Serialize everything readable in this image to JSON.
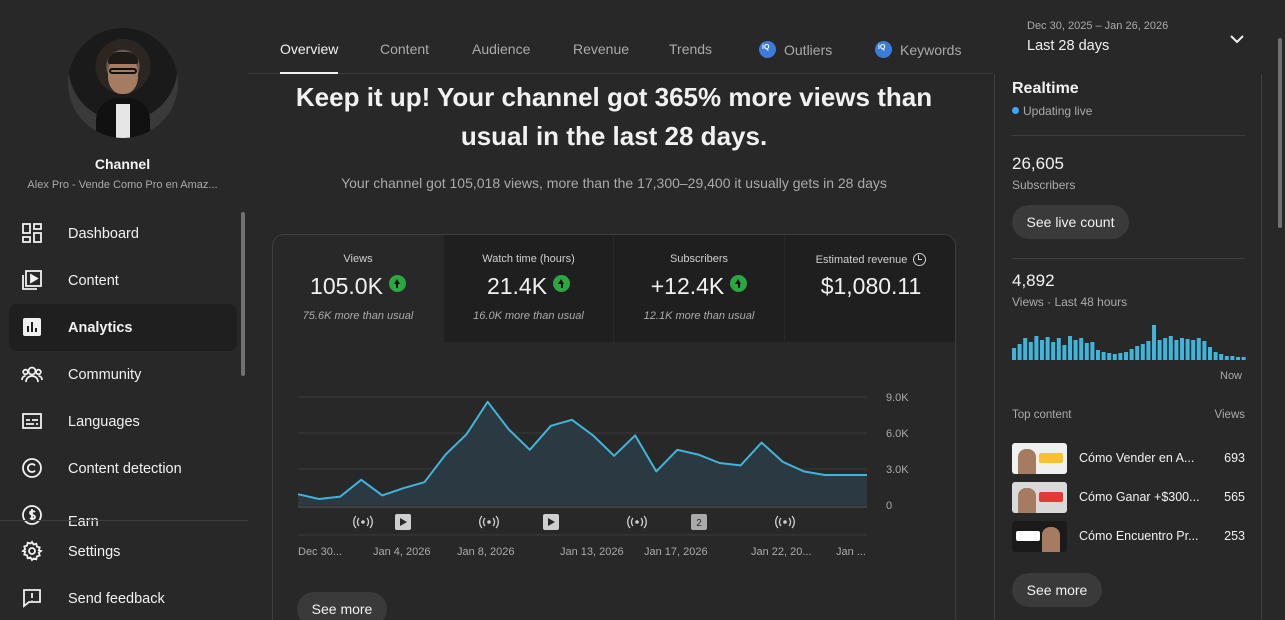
{
  "sidebar": {
    "channel_title": "Channel",
    "channel_name": "Alex Pro - Vende Como Pro en Amaz...",
    "items": [
      {
        "label": "Dashboard",
        "icon": "dashboard-icon"
      },
      {
        "label": "Content",
        "icon": "content-icon"
      },
      {
        "label": "Analytics",
        "icon": "analytics-icon",
        "active": true
      },
      {
        "label": "Community",
        "icon": "community-icon"
      },
      {
        "label": "Languages",
        "icon": "languages-icon"
      },
      {
        "label": "Content detection",
        "icon": "copyright-icon"
      },
      {
        "label": "Earn",
        "icon": "earn-icon"
      }
    ],
    "bottom_items": [
      {
        "label": "Settings",
        "icon": "gear-icon"
      },
      {
        "label": "Send feedback",
        "icon": "feedback-icon"
      }
    ]
  },
  "tabs": [
    {
      "label": "Overview",
      "active": true
    },
    {
      "label": "Content"
    },
    {
      "label": "Audience"
    },
    {
      "label": "Revenue"
    },
    {
      "label": "Trends"
    },
    {
      "label": "Outliers",
      "badge": true
    },
    {
      "label": "Keywords",
      "badge": true
    }
  ],
  "date_picker": {
    "range": "Dec 30, 2025 – Jan 26, 2026",
    "label": "Last 28 days"
  },
  "headline": "Keep it up! Your channel got 365% more views than usual in the last 28 days.",
  "subline": "Your channel got 105,018 views, more than the 17,300–29,400 it usually gets in 28 days",
  "metrics": [
    {
      "label": "Views",
      "value": "105.0K",
      "note": "75.6K more than usual",
      "up": true
    },
    {
      "label": "Watch time (hours)",
      "value": "21.4K",
      "note": "16.0K more than usual",
      "up": true
    },
    {
      "label": "Subscribers",
      "value": "+12.4K",
      "note": "12.1K more than usual",
      "up": true
    },
    {
      "label": "Estimated revenue",
      "value": "$1,080.11",
      "note": "",
      "up": false
    }
  ],
  "chart_data": {
    "type": "area",
    "x": [
      "Dec 30",
      "Dec 31",
      "Jan 1",
      "Jan 2",
      "Jan 3",
      "Jan 4",
      "Jan 5",
      "Jan 6",
      "Jan 7",
      "Jan 8",
      "Jan 9",
      "Jan 10",
      "Jan 11",
      "Jan 12",
      "Jan 13",
      "Jan 14",
      "Jan 15",
      "Jan 16",
      "Jan 17",
      "Jan 18",
      "Jan 19",
      "Jan 20",
      "Jan 21",
      "Jan 22",
      "Jan 23",
      "Jan 24",
      "Jan 25",
      "Jan 26"
    ],
    "series": [
      {
        "values": [
          900,
          500,
          700,
          2100,
          800,
          1400,
          1900,
          4200,
          5900,
          8600,
          6300,
          4600,
          6600,
          7100,
          5800,
          4100,
          5800,
          2800,
          4600,
          4200,
          3500,
          3300,
          5200,
          3600,
          2800,
          2500,
          2500,
          2500
        ]
      }
    ],
    "x_tick_labels": [
      "Dec 30...",
      "Jan 4, 2026",
      "Jan 8, 2026",
      "Jan 13, 2026",
      "Jan 17, 2026",
      "Jan 22, 20...",
      "Jan ..."
    ],
    "y_tick_labels": [
      "9.0K",
      "6.0K",
      "3.0K",
      "0"
    ],
    "ylim": [
      0,
      9000
    ],
    "grid": true,
    "line_color": "#41b4d9",
    "fill_color": "#2b3a42",
    "event_markers": [
      "live",
      "video",
      "live",
      "video",
      "live",
      "short",
      "live"
    ],
    "event_badge_text": "2"
  },
  "see_more_main": "See more",
  "realtime": {
    "title": "Realtime",
    "status": "Updating live",
    "subscribers_value": "26,605",
    "subscribers_label": "Subscribers",
    "live_count_button": "See live count",
    "views_value": "4,892",
    "views_label": "Views · Last 48 hours",
    "bars": [
      12,
      16,
      22,
      18,
      24,
      20,
      23,
      18,
      22,
      15,
      24,
      20,
      22,
      17,
      18,
      10,
      8,
      7,
      6,
      7,
      8,
      11,
      14,
      16,
      19,
      35,
      20,
      22,
      24,
      20,
      22,
      21,
      20,
      22,
      19,
      13,
      8,
      6,
      4,
      4,
      3,
      3
    ],
    "bar_color": "#41b4d9",
    "now_label": "Now",
    "top_content_label": "Top content",
    "views_col_label": "Views",
    "top_content": [
      {
        "title": "Cómo Vender en A...",
        "views": "693"
      },
      {
        "title": "Cómo Ganar +$300...",
        "views": "565"
      },
      {
        "title": "Cómo Encuentro Pr...",
        "views": "253"
      }
    ],
    "see_more": "See more"
  }
}
